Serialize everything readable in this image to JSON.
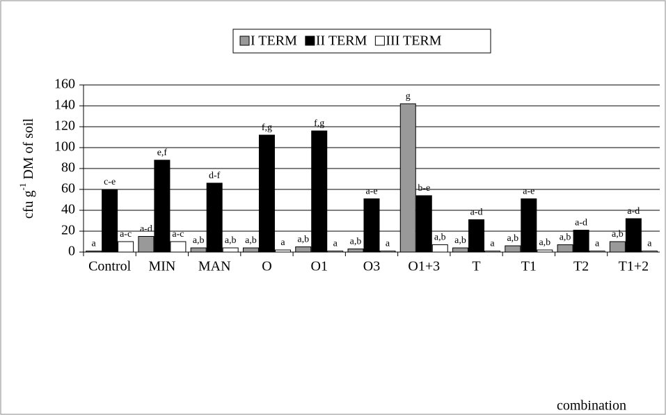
{
  "chart_data": {
    "type": "bar",
    "categories": [
      "Control",
      "MIN",
      "MAN",
      "O",
      "O1",
      "O3",
      "O1+3",
      "T",
      "T1",
      "T2",
      "T1+2"
    ],
    "series": [
      {
        "name": "I TERM",
        "color": "#999999",
        "values": [
          1,
          15,
          4,
          4,
          5,
          3,
          142,
          4,
          6,
          7,
          10
        ],
        "value_labels": [
          "a",
          "a-d",
          "a,b",
          "a,b",
          "a,b",
          "a,b",
          "g",
          "a,b",
          "a,b",
          "a,b",
          "a,b"
        ]
      },
      {
        "name": "II TERM",
        "color": "#000000",
        "values": [
          60,
          88,
          66,
          112,
          116,
          51,
          54,
          31,
          51,
          21,
          32
        ],
        "value_labels": [
          "c-e",
          "e,f",
          "d-f",
          "f,g",
          "f,g",
          "a-e",
          "b-e",
          "a-d",
          "a-e",
          "a-d",
          "a-d"
        ]
      },
      {
        "name": "III TERM",
        "color": "#ffffff",
        "values": [
          10,
          10,
          4,
          2,
          1,
          1,
          7,
          1,
          2,
          1,
          1
        ],
        "value_labels": [
          "a-c",
          "a-c",
          "a,b",
          "a",
          "a",
          "a",
          "a,b",
          "a",
          "a,b",
          "a",
          "a"
        ]
      }
    ],
    "y_label": {
      "main": "cfu g",
      "sup": "-1",
      "rest": " DM of soil"
    },
    "x_label": "combination",
    "ylim": [
      0,
      160
    ],
    "yticks": [
      0,
      20,
      40,
      60,
      80,
      100,
      120,
      140,
      160
    ],
    "grid": true,
    "legend": "top"
  }
}
